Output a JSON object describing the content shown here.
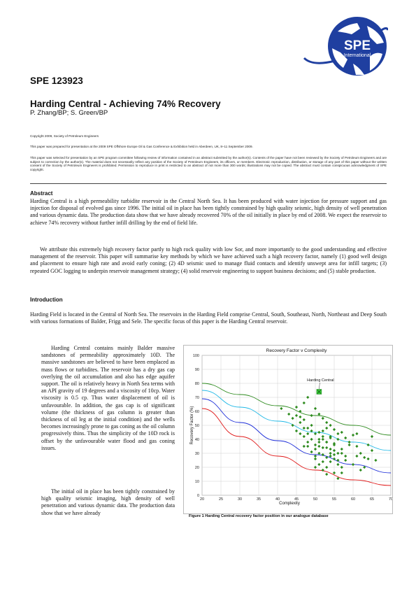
{
  "header": {
    "logo_text_1": "SPE",
    "logo_text_2": "International",
    "paper_id": "SPE 123923",
    "title": "Harding Central - Achieving 74% Recovery",
    "authors": "P. Zhang/BP; S. Green/BP"
  },
  "notices": {
    "copyright": "Copyright 2009, Society of Petroleum Engineers",
    "prepared": "This paper was prepared for presentation at the 2009 SPE Offshore Europe Oil & Gas Conference & Exhibition held in Aberdeen, UK, 8–11 September 2009.",
    "disclaimer": "This paper was selected for presentation by an SPE program committee following review of information contained in an abstract submitted by the author(s). Contents of the paper have not been reviewed by the Society of Petroleum Engineers and are subject to correction by the author(s). The material does not necessarily reflect any position of the Society of Petroleum Engineers, its officers, or members. Electronic reproduction, distribution, or storage of any part of this paper without the written consent of the Society of Petroleum Engineers is prohibited. Permission to reproduce in print is restricted to an abstract of not more than 300 words; illustrations may not be copied. The abstract must contain conspicuous acknowledgment of SPE copyright."
  },
  "abstract": {
    "heading": "Abstract",
    "p1": "Harding Central is a high permeability turbidite reservoir in the Central North Sea.  It has been produced with water injection for pressure support and gas injection for disposal of evolved gas since 1996.  The initial oil in place has been tightly constrained by high quality seismic, high density of well penetration and various dynamic data. The production data show that we have already recovered 70% of the oil initially in place by end of 2008.  We expect the reservoir to achieve 74% recovery without further infill drilling by the end of field life.",
    "p2": "We attribute this extremely high recovery factor partly to high rock quality with low Sor, and more importantly to the good understanding and effective management of the reservoir. This paper will summarise key methods by which we have achieved such a high recovery factor, namely (1) good well design and placement to ensure high rate and avoid early coning; (2) 4D seismic used to manage fluid contacts and identify unswept area for infill targets; (3) repeated GOC logging to underpin reservoir management strategy; (4) solid reservoir engineering to support business decisions; and (5) stable production."
  },
  "introduction": {
    "heading": "Introduction",
    "p1": "Harding Field is located in the Central of North Sea. The reservoirs in the Harding Field comprise Central, South, Southeast, North, Northeast and Deep South with various formations of Balder, Frigg and Sele. The specific focus of this paper is the Harding Central reservoir.",
    "p2": "Harding Central contains mainly Balder massive sandstones of permeability approximately 10D. The massive sandstones are believed to have been emplaced as mass flows or turbidites.  The reservoir has a dry gas cap overlying the oil accumulation and also has edge aquifer support. The oil is relatively heavy in North Sea terms with an API gravity of 19 degrees and a viscosity of 10cp. Water viscosity is 0.5 cp. Thus water displacement of oil is unfavourable.  In addition, the gas cap is of significant volume (the thickness of gas column is greater than thickness of oil leg at the initial condition) and the wells becomes increasingly prone to gas coning as the oil column progressively thins.  Thus the simplicity of the 10D rock is offset by the unfavourable water flood and gas coning issues.",
    "p3": "The initial oil in place has been tightly constrained by high quality seismic imaging, high density of well penetration and various dynamic data. The production data show that we have already"
  },
  "figure": {
    "caption": "Figure 1 Harding Central recovery factor position in our analogue database"
  },
  "chart_data": {
    "type": "scatter",
    "title": "Recovery Factor v Complexity",
    "xlabel": "Complexity",
    "ylabel": "Recovery Factor (%)",
    "xlim": [
      20,
      70
    ],
    "ylim": [
      0,
      100
    ],
    "xticks": [
      20,
      25,
      30,
      35,
      40,
      45,
      50,
      55,
      60,
      65,
      70
    ],
    "yticks": [
      0,
      10,
      20,
      30,
      40,
      50,
      60,
      70,
      80,
      90,
      100
    ],
    "grid": true,
    "colors": {
      "points": "#2e8b1f",
      "highlight": "#3ccf3c",
      "curve_upper": "#2e8b1f",
      "curve_cyan": "#1fb8e6",
      "curve_blue": "#1a2bd8",
      "curve_red": "#e01818"
    },
    "annotation": {
      "label": "Harding Central",
      "x": 51,
      "y": 74
    },
    "curves": [
      {
        "color": "curve_upper",
        "x": [
          20,
          30,
          40,
          50,
          60,
          70
        ],
        "y": [
          80,
          72,
          64,
          57,
          50,
          43
        ]
      },
      {
        "color": "curve_cyan",
        "x": [
          20,
          30,
          40,
          50,
          60,
          70
        ],
        "y": [
          75,
          63,
          53,
          45,
          38,
          32
        ]
      },
      {
        "color": "curve_blue",
        "x": [
          20,
          30,
          40,
          50,
          60,
          70
        ],
        "y": [
          69,
          52,
          39,
          29,
          22,
          16
        ]
      },
      {
        "color": "curve_red",
        "x": [
          20,
          30,
          40,
          50,
          60,
          70
        ],
        "y": [
          62,
          42,
          28,
          18,
          11,
          7
        ]
      }
    ],
    "points": {
      "x": [
        41,
        43,
        44,
        45,
        45,
        46,
        46,
        47,
        47,
        48,
        48,
        49,
        49,
        50,
        50,
        51,
        51,
        52,
        52,
        53,
        53,
        54,
        54,
        55,
        55,
        56,
        56,
        57,
        58,
        59,
        60,
        61,
        62,
        63,
        64,
        65,
        66,
        49,
        50,
        51,
        52,
        53,
        54,
        55,
        56,
        47,
        48,
        46,
        45,
        44,
        50,
        51,
        52,
        53,
        54,
        55,
        57,
        58,
        60,
        62,
        49,
        50,
        51,
        52,
        53,
        48,
        47,
        46,
        56,
        57,
        59,
        61,
        63,
        65,
        50,
        51,
        52,
        53,
        54,
        55,
        56,
        57,
        58,
        52,
        53,
        54,
        55,
        48,
        49,
        50,
        47,
        51,
        52,
        53,
        54,
        55,
        56,
        57,
        61,
        64
      ],
      "y": [
        62,
        58,
        55,
        63,
        57,
        60,
        52,
        66,
        54,
        70,
        48,
        57,
        50,
        62,
        44,
        58,
        40,
        55,
        46,
        52,
        38,
        50,
        42,
        47,
        36,
        44,
        40,
        45,
        41,
        38,
        43,
        35,
        30,
        27,
        36,
        42,
        25,
        46,
        36,
        30,
        34,
        48,
        28,
        32,
        30,
        42,
        38,
        44,
        46,
        50,
        26,
        22,
        40,
        34,
        24,
        37,
        33,
        28,
        22,
        18,
        31,
        20,
        38,
        29,
        15,
        44,
        35,
        56,
        25,
        20,
        36,
        44,
        20,
        32,
        28,
        45,
        24,
        20,
        41,
        26,
        22,
        30,
        25,
        18,
        27,
        33,
        16,
        35,
        40,
        33,
        48,
        35,
        42,
        38,
        30,
        29,
        12,
        16,
        28,
        26
      ]
    }
  }
}
